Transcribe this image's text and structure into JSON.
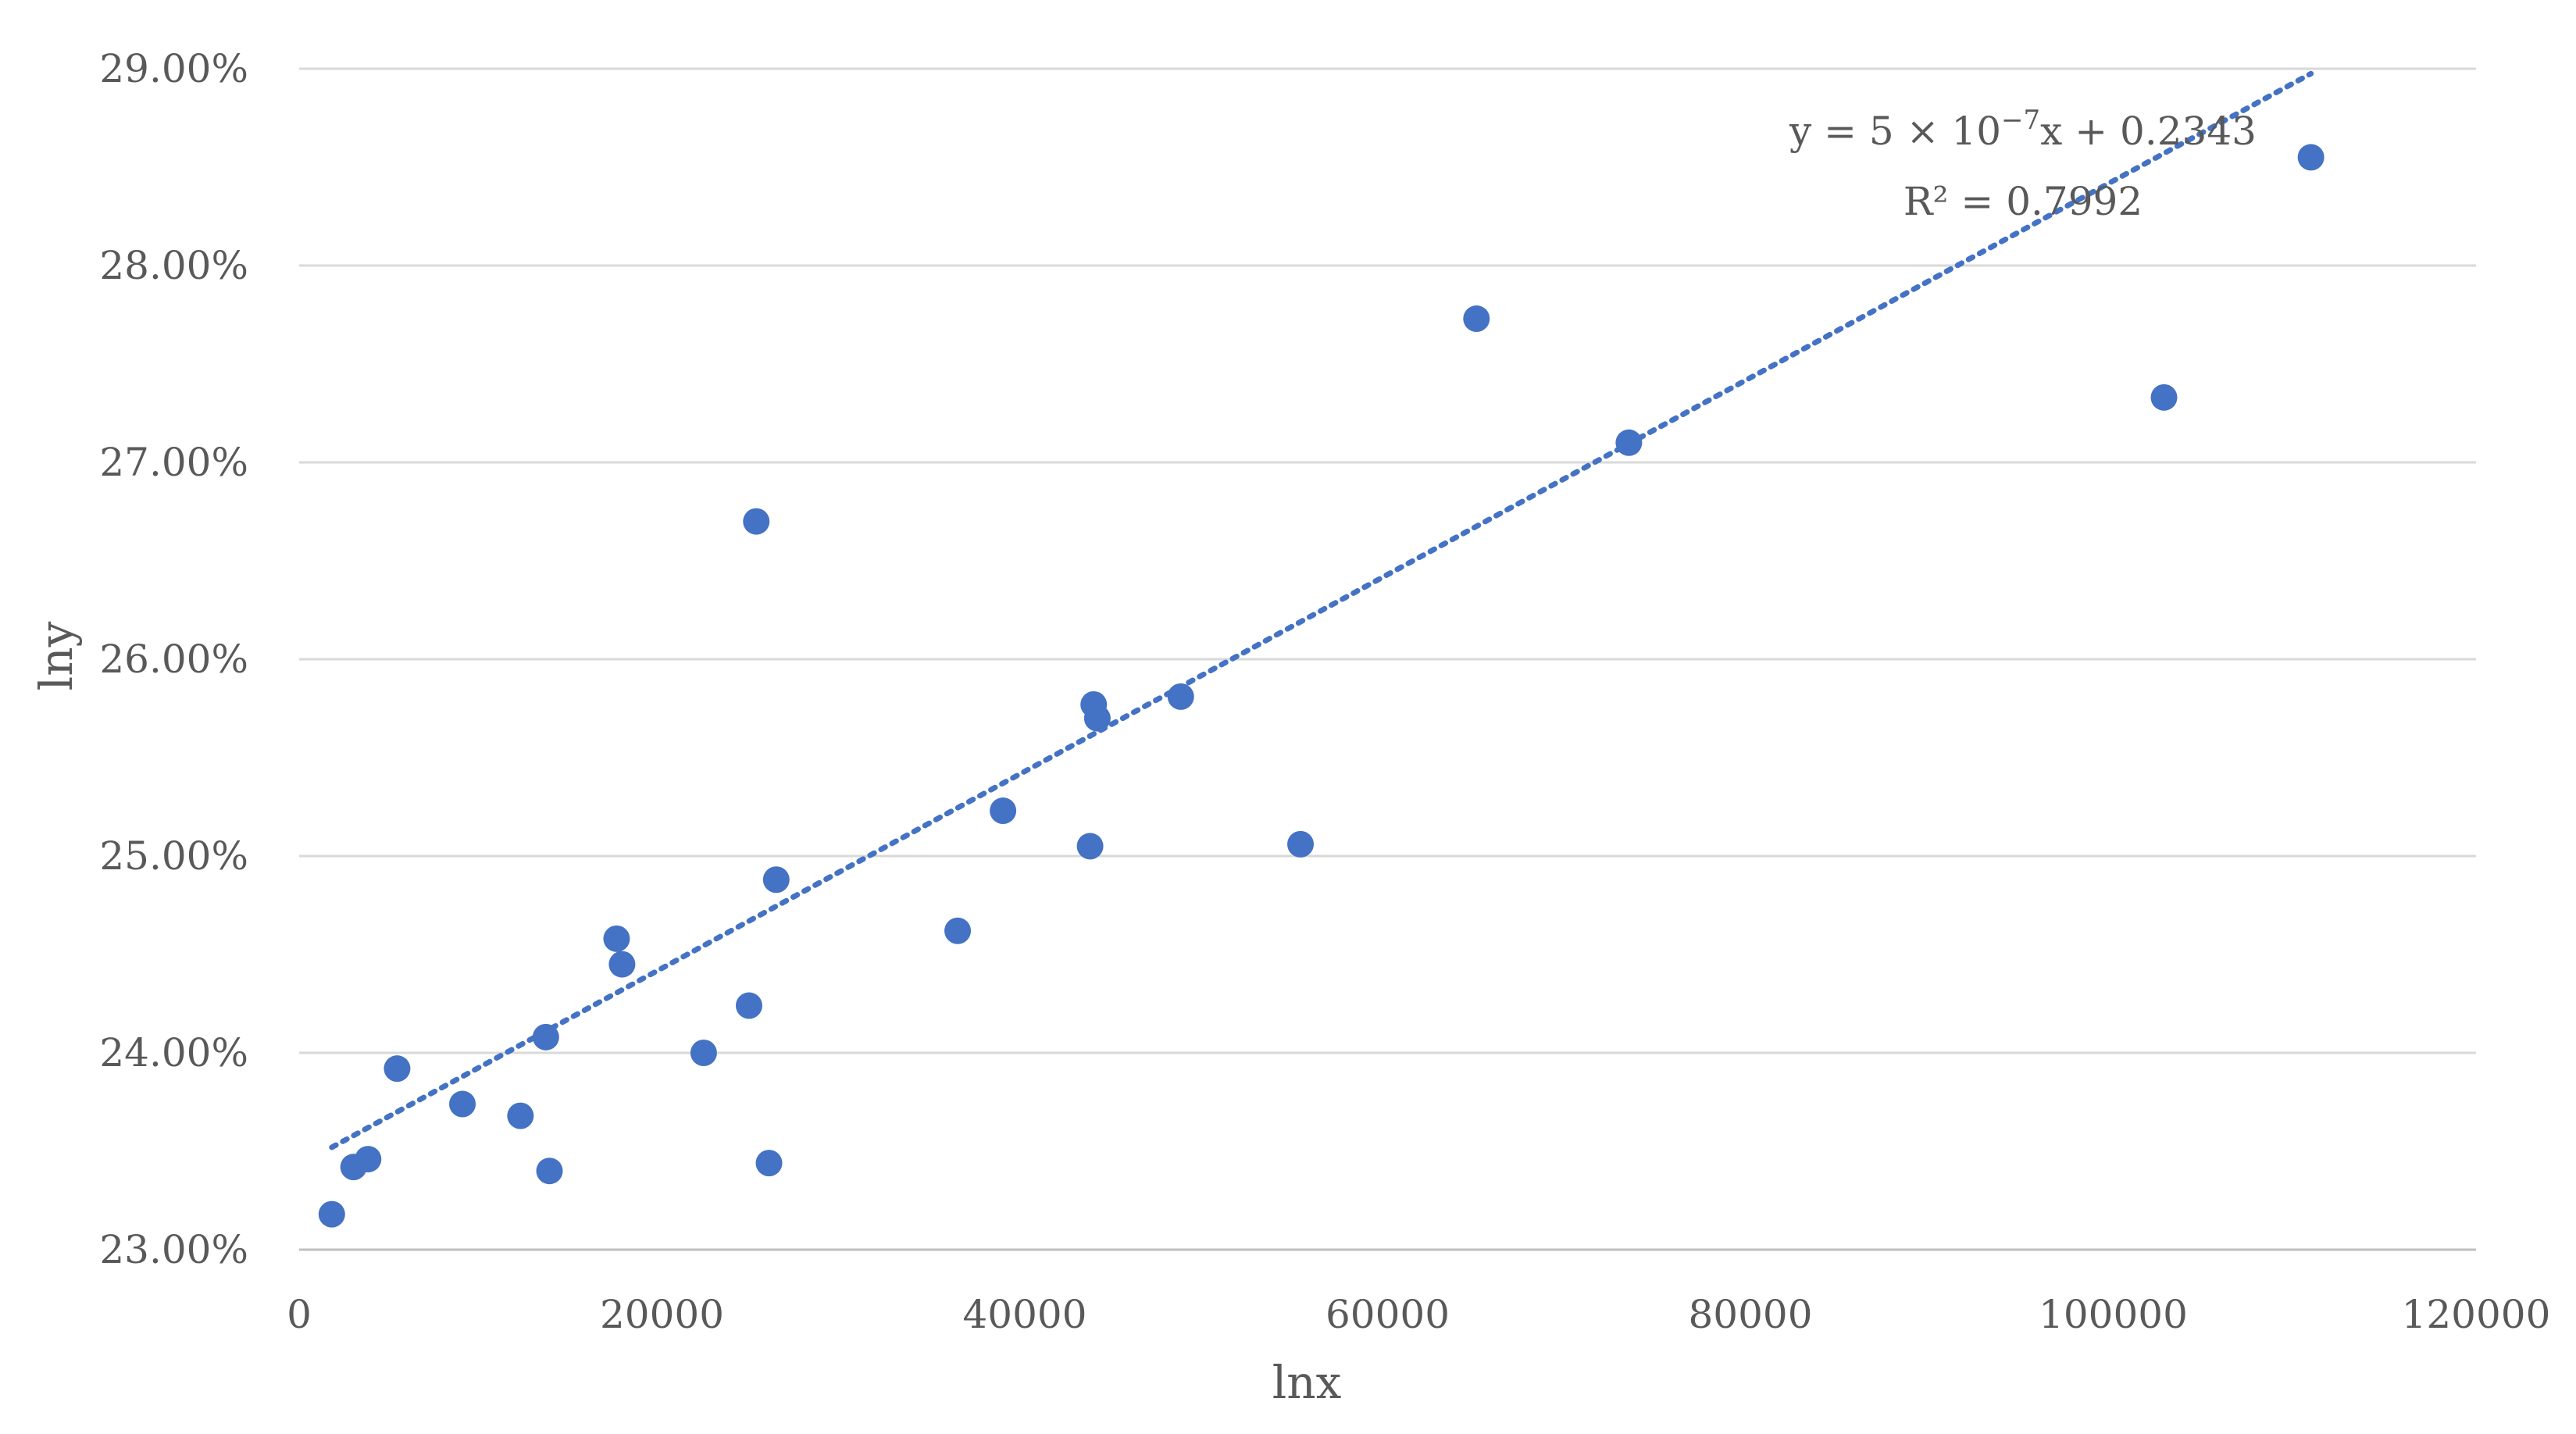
{
  "chart_data": {
    "type": "scatter",
    "title": "",
    "xlabel": "lnx",
    "ylabel": "lny",
    "xlim": [
      0,
      120000
    ],
    "ylim": [
      0.23,
      0.29
    ],
    "x_ticks": [
      "0",
      "20000",
      "40000",
      "60000",
      "80000",
      "100000",
      "120000"
    ],
    "y_ticks": [
      "23.00%",
      "24.00%",
      "25.00%",
      "26.00%",
      "27.00%",
      "28.00%",
      "29.00%"
    ],
    "grid": "horizontal",
    "legend": "none",
    "marker_color": "#4472C4",
    "trendline_color": "#4472C4",
    "series": [
      {
        "points": [
          [
            1800,
            0.2318
          ],
          [
            3000,
            0.2342
          ],
          [
            3800,
            0.2346
          ],
          [
            5400,
            0.2392
          ],
          [
            9000,
            0.2374
          ],
          [
            12200,
            0.2368
          ],
          [
            13600,
            0.2408
          ],
          [
            13800,
            0.234
          ],
          [
            17500,
            0.2458
          ],
          [
            17800,
            0.2445
          ],
          [
            22300,
            0.24
          ],
          [
            24800,
            0.2424
          ],
          [
            25200,
            0.267
          ],
          [
            25900,
            0.2344
          ],
          [
            26300,
            0.2488
          ],
          [
            36300,
            0.2462
          ],
          [
            38800,
            0.2523
          ],
          [
            43600,
            0.2505
          ],
          [
            43800,
            0.2577
          ],
          [
            44000,
            0.257
          ],
          [
            48600,
            0.2581
          ],
          [
            55200,
            0.2506
          ],
          [
            64900,
            0.2773
          ],
          [
            73300,
            0.271
          ],
          [
            102800,
            0.2733
          ],
          [
            110900,
            0.2855
          ]
        ]
      }
    ],
    "trendline": {
      "type": "linear",
      "slope": 5e-07,
      "intercept": 0.2343,
      "x_range": [
        1800,
        110900
      ],
      "style": "dotted",
      "equation_lines": [
        "y = 5 × 10",
        "−7",
        "x + 0.2343"
      ],
      "r_squared_label": "R² = 0.7992"
    }
  }
}
